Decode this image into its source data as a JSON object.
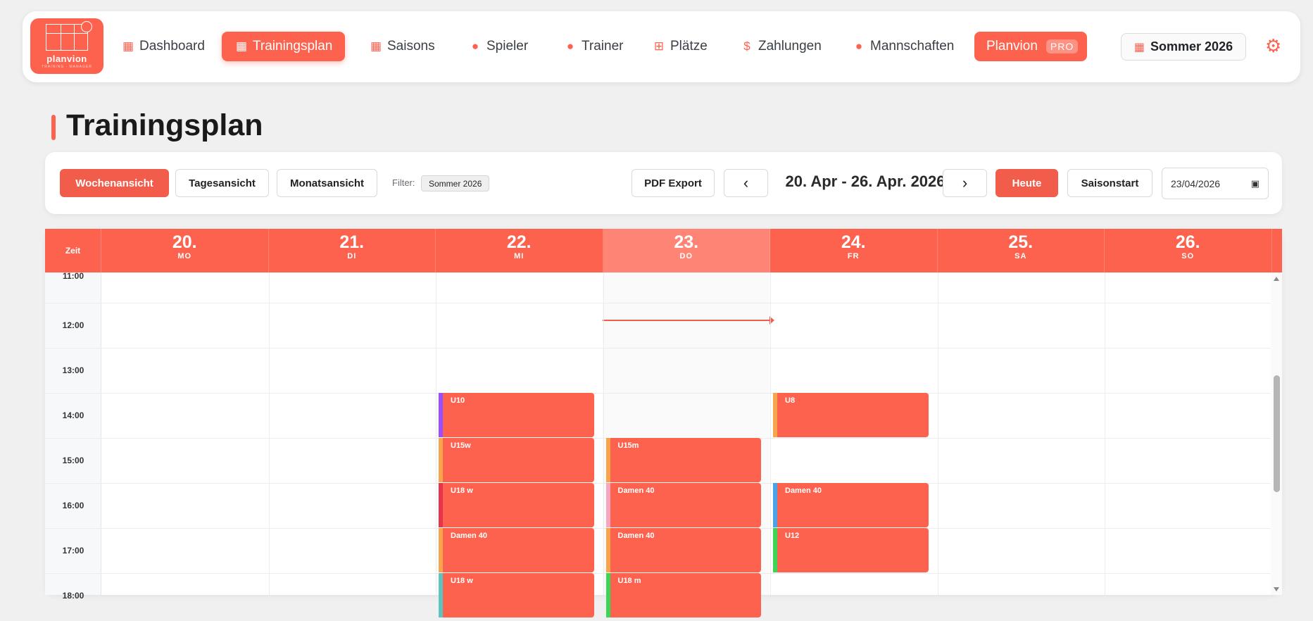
{
  "nav": {
    "logo": {
      "name": "planvion",
      "tagline": "TRAINING · MANAGER"
    },
    "items": [
      {
        "label": "Dashboard",
        "icon": "dashboard-icon",
        "glyph": "▦"
      },
      {
        "label": "Trainingsplan",
        "icon": "calendar-icon",
        "glyph": "▦",
        "active": true
      },
      {
        "label": "Saisons",
        "icon": "calendar-icon",
        "glyph": "▦"
      },
      {
        "label": "Spieler",
        "icon": "user-icon",
        "glyph": "●"
      },
      {
        "label": "Trainer",
        "icon": "user-icon",
        "glyph": "●"
      },
      {
        "label": "Plätze",
        "icon": "grid-icon",
        "glyph": "⊞"
      },
      {
        "label": "Zahlungen",
        "icon": "dollar-icon",
        "glyph": "$"
      },
      {
        "label": "Mannschaften",
        "icon": "team-icon",
        "glyph": "●"
      }
    ],
    "pro": {
      "label": "Planvion",
      "badge": "PRO"
    },
    "season": "Sommer 2026"
  },
  "page": {
    "title": "Trainingsplan"
  },
  "toolbar": {
    "views": [
      "Wochenansicht",
      "Tagesansicht",
      "Monatsansicht"
    ],
    "filter_label": "Filter:",
    "filter_value": "Sommer 2026",
    "pdf_export": "PDF Export",
    "prev": "‹",
    "next": "›",
    "range": "20. Apr - 26. Apr. 2026",
    "today": "Heute",
    "season_start": "Saisonstart",
    "date_value": "23/04/2026"
  },
  "calendar": {
    "time_header": "Zeit",
    "days": [
      {
        "num": "20.",
        "weekday": "MO"
      },
      {
        "num": "21.",
        "weekday": "DI"
      },
      {
        "num": "22.",
        "weekday": "MI"
      },
      {
        "num": "23.",
        "weekday": "DO",
        "today": true
      },
      {
        "num": "24.",
        "weekday": "FR"
      },
      {
        "num": "25.",
        "weekday": "SA"
      },
      {
        "num": "26.",
        "weekday": "SO"
      }
    ],
    "hours": [
      "11:00",
      "12:00",
      "13:00",
      "14:00",
      "15:00",
      "16:00",
      "17:00",
      "18:00"
    ],
    "events": [
      {
        "label": "U10",
        "day": 2,
        "hour": 14,
        "color": "#9b4dff"
      },
      {
        "label": "U15w",
        "day": 2,
        "hour": 15,
        "color": "#f7a44a"
      },
      {
        "label": "U18 w",
        "day": 2,
        "hour": 16,
        "color": "#e8344a"
      },
      {
        "label": "Damen 40",
        "day": 2,
        "hour": 17,
        "color": "#f7a44a"
      },
      {
        "label": "U18 w",
        "day": 2,
        "hour": 18,
        "color": "#5ec4c0"
      },
      {
        "label": "U15m",
        "day": 3,
        "hour": 15,
        "color": "#f7a44a"
      },
      {
        "label": "Damen 40",
        "day": 3,
        "hour": 16,
        "color": "#f7a6c0"
      },
      {
        "label": "Damen 40",
        "day": 3,
        "hour": 17,
        "color": "#f7a44a"
      },
      {
        "label": "U18 m",
        "day": 3,
        "hour": 18,
        "color": "#3ad655"
      },
      {
        "label": "U8",
        "day": 4,
        "hour": 14,
        "color": "#f7a44a"
      },
      {
        "label": "Damen 40",
        "day": 4,
        "hour": 16,
        "color": "#4aa3e8"
      },
      {
        "label": "U12",
        "day": 4,
        "hour": 17,
        "color": "#3ad655"
      }
    ]
  }
}
